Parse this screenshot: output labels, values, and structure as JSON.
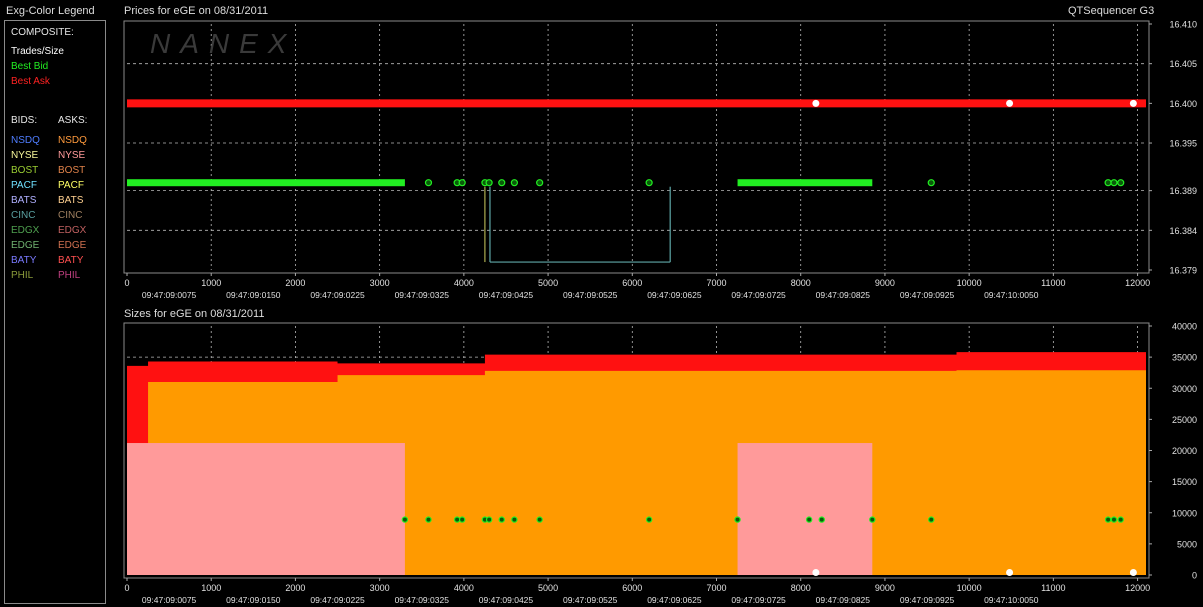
{
  "legend": {
    "title": "Exg-Color Legend",
    "composite_label": "COMPOSITE:",
    "trades_size": "Trades/Size",
    "best_bid": "Best Bid",
    "best_ask": "Best Ask",
    "bids_header": "BIDS:",
    "asks_header": "ASKS:",
    "exchanges": [
      {
        "name": "NSDQ",
        "bid_color": "#4f7dff",
        "ask_color": "#ff9a3c"
      },
      {
        "name": "NYSE",
        "bid_color": "#f5f59a",
        "ask_color": "#ff9a9a"
      },
      {
        "name": "BOST",
        "bid_color": "#9acd32",
        "ask_color": "#e0824a"
      },
      {
        "name": "PACF",
        "bid_color": "#6fe0ff",
        "ask_color": "#ffff66"
      },
      {
        "name": "BATS",
        "bid_color": "#b0b0ff",
        "ask_color": "#ffd090"
      },
      {
        "name": "CINC",
        "bid_color": "#5aa0a0",
        "ask_color": "#a08060"
      },
      {
        "name": "EDGX",
        "bid_color": "#4fa04f",
        "ask_color": "#c06060"
      },
      {
        "name": "EDGE",
        "bid_color": "#6fb06f",
        "ask_color": "#d07050"
      },
      {
        "name": "BATY",
        "bid_color": "#7a7aff",
        "ask_color": "#ff5050"
      },
      {
        "name": "PHIL",
        "bid_color": "#8a9a3a",
        "ask_color": "#c04080"
      }
    ]
  },
  "header": {
    "price_title": "Prices for  eGE  on  08/31/2011",
    "size_title": "Sizes for  eGE  on  08/31/2011",
    "app_name": "QTSequencer G3",
    "watermark": "NANEX"
  },
  "colors": {
    "best_bid": "#22ee22",
    "best_ask": "#ff1111",
    "trade": "#ffffff",
    "nsdq_ask": "#ff9a00",
    "nyse_ask": "#ff9a9a",
    "grid": "#b8b8b8",
    "frame": "#8a8a8a",
    "pacf_line": "#5fa8a8"
  },
  "chart_data": [
    {
      "type": "line",
      "title": "Prices for  eGE  on  08/31/2011",
      "x_ticks": [
        0,
        1000,
        2000,
        3000,
        4000,
        5000,
        6000,
        7000,
        8000,
        9000,
        10000,
        11000,
        12000
      ],
      "time_labels": [
        "09:47:09:0075",
        "09:47:09:0150",
        "09:47:09:0225",
        "09:47:09:0325",
        "09:47:09:0425",
        "09:47:09:0525",
        "09:47:09:0625",
        "09:47:09:0725",
        "09:47:09:0825",
        "09:47:09:0925",
        "09:47:10:0050"
      ],
      "y_ticks": [
        "16.410",
        "16.405",
        "16.400",
        "16.395",
        "16.389",
        "16.384",
        "16.379"
      ],
      "xlim": [
        0,
        12100
      ],
      "ylim": [
        16.379,
        16.41
      ],
      "series": [
        {
          "name": "Best Ask",
          "value": 16.4,
          "segments": [
            [
              0,
              12100
            ]
          ]
        },
        {
          "name": "Best Bid",
          "value": 16.39,
          "segments": [
            [
              0,
              3300
            ],
            [
              7250,
              8850
            ]
          ],
          "points": [
            3580,
            3920,
            3980,
            4250,
            4300,
            4450,
            4600,
            4900,
            6200,
            9550,
            11650,
            11720,
            11800
          ]
        },
        {
          "name": "PACF Bid",
          "value": 16.38,
          "segments": [
            [
              4310,
              6450
            ]
          ],
          "vertical_at": [
            4310,
            6450
          ]
        }
      ],
      "trades": [
        {
          "x": 8180,
          "price": 16.4
        },
        {
          "x": 10480,
          "price": 16.4
        },
        {
          "x": 11950,
          "price": 16.4
        }
      ]
    },
    {
      "type": "area",
      "title": "Sizes for  eGE  on  08/31/2011",
      "x_ticks": [
        0,
        1000,
        2000,
        3000,
        4000,
        5000,
        6000,
        7000,
        8000,
        9000,
        10000,
        11000,
        12000
      ],
      "time_labels": [
        "09:47:09:0075",
        "09:47:09:0150",
        "09:47:09:0225",
        "09:47:09:0325",
        "09:47:09:0425",
        "09:47:09:0525",
        "09:47:09:0625",
        "09:47:09:0725",
        "09:47:09:0825",
        "09:47:09:0925",
        "09:47:10:0050"
      ],
      "y_ticks": [
        40000,
        35000,
        30000,
        25000,
        20000,
        15000,
        10000,
        5000,
        0
      ],
      "xlim": [
        0,
        12100
      ],
      "ylim": [
        0,
        40000
      ],
      "series": [
        {
          "name": "Best Ask",
          "steps": [
            [
              0,
              33600
            ],
            [
              250,
              34300
            ],
            [
              2500,
              34000
            ],
            [
              4250,
              35400
            ],
            [
              9850,
              35800
            ],
            [
              12100,
              35800
            ]
          ]
        },
        {
          "name": "NSDQ",
          "steps": [
            [
              0,
              21000
            ],
            [
              250,
              31000
            ],
            [
              2500,
              32100
            ],
            [
              4250,
              32800
            ],
            [
              9850,
              32900
            ],
            [
              12100,
              32900
            ]
          ]
        },
        {
          "name": "NYSE",
          "blocks": [
            [
              0,
              3300,
              21200
            ],
            [
              7250,
              8850,
              21200
            ]
          ]
        },
        {
          "name": "Best Bid",
          "points": [
            3300,
            3580,
            3920,
            3980,
            4250,
            4300,
            4450,
            4600,
            4900,
            6200,
            7250,
            8100,
            8250,
            8850,
            9550,
            11650,
            11720,
            11800
          ],
          "value": 8900
        }
      ],
      "trades": [
        {
          "x": 8180,
          "size": 400
        },
        {
          "x": 10480,
          "size": 400
        },
        {
          "x": 11950,
          "size": 400
        }
      ]
    }
  ]
}
